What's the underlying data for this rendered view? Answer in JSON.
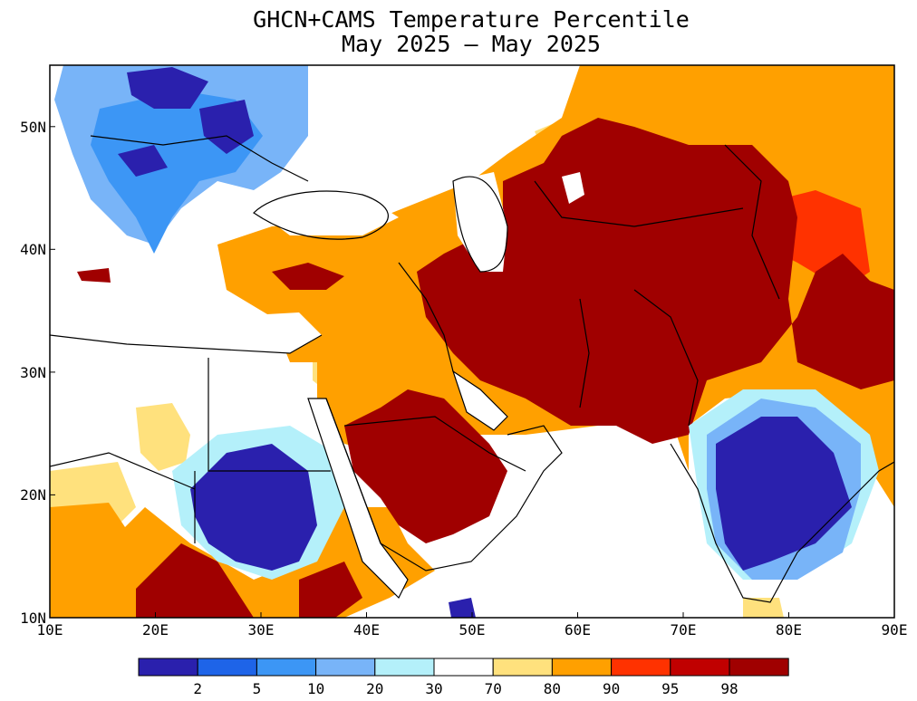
{
  "title": "GHCN+CAMS Temperature Percentile",
  "subtitle": "May 2025 – May 2025",
  "map": {
    "lon_range": [
      10,
      90
    ],
    "lat_range": [
      10,
      55
    ],
    "x_tick_labels": [
      "10E",
      "20E",
      "30E",
      "40E",
      "50E",
      "60E",
      "70E",
      "80E",
      "90E"
    ],
    "y_tick_labels": [
      "10N",
      "20N",
      "30N",
      "40N",
      "50N"
    ],
    "background": "white",
    "regions_described": [
      {
        "name": "central asia / iran / afghanistan",
        "category": ">98"
      },
      {
        "name": "saudi arabia interior",
        "category": ">98"
      },
      {
        "name": "central india",
        "category": "<2"
      },
      {
        "name": "sudan / chad border",
        "category": "<2"
      },
      {
        "name": "eastern europe / ukraine",
        "category": "2-10"
      }
    ]
  },
  "legend": {
    "labels": [
      "2",
      "5",
      "10",
      "20",
      "30",
      "70",
      "80",
      "90",
      "95",
      "98"
    ],
    "colors": [
      "#2a20ad",
      "#1e64e8",
      "#3c96f5",
      "#78b4f8",
      "#b4f0fa",
      "#ffffff",
      "#ffe17d",
      "#ffa000",
      "#ff3200",
      "#c00000",
      "#a00000"
    ]
  }
}
